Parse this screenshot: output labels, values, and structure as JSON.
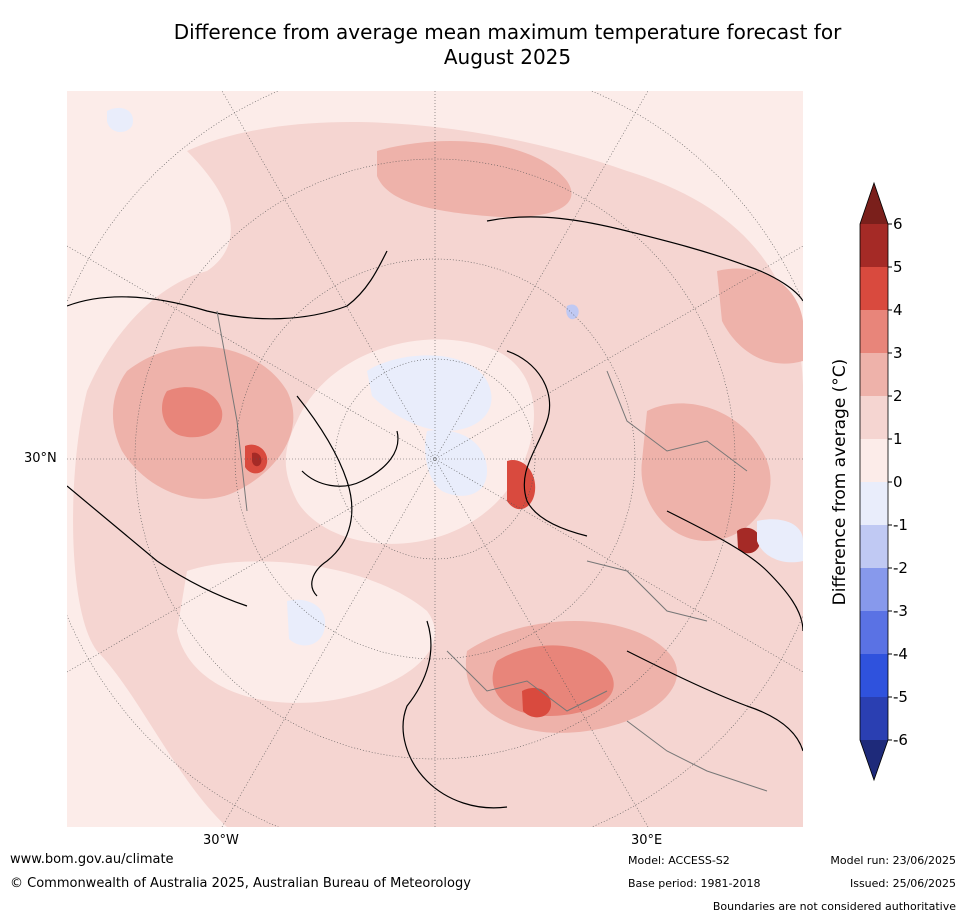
{
  "title_line1": "Difference from average mean maximum temperature forecast for",
  "title_line2": "August 2025",
  "axis_labels": {
    "lat_30n": "30°N",
    "lon_30w": "30°W",
    "lon_30e": "30°E"
  },
  "colorbar": {
    "label": "Difference from average (°C)",
    "ticks": [
      "6",
      "5",
      "4",
      "3",
      "2",
      "1",
      "0",
      "-1",
      "-2",
      "-3",
      "-4",
      "-5",
      "-6"
    ],
    "colors": [
      "#a52a26",
      "#d94a3e",
      "#e8857a",
      "#eeb2aa",
      "#f5d5d1",
      "#fcece9",
      "#e9edfb",
      "#c0c9f3",
      "#8799ec",
      "#5a72e4",
      "#2f52dd",
      "#2a3fb2"
    ],
    "over_color": "#7a1f1b",
    "under_color": "#1e2a7a"
  },
  "footer": {
    "url": "www.bom.gov.au/climate",
    "copyright": "© Commonwealth of Australia 2025, Australian Bureau of Meteorology",
    "model": "Model: ACCESS-S2",
    "base_period": "Base period: 1981-2018",
    "model_run": "Model run: 23/06/2025",
    "issued": "Issued: 25/06/2025",
    "disclaimer": "Boundaries are not considered authoritative"
  }
}
